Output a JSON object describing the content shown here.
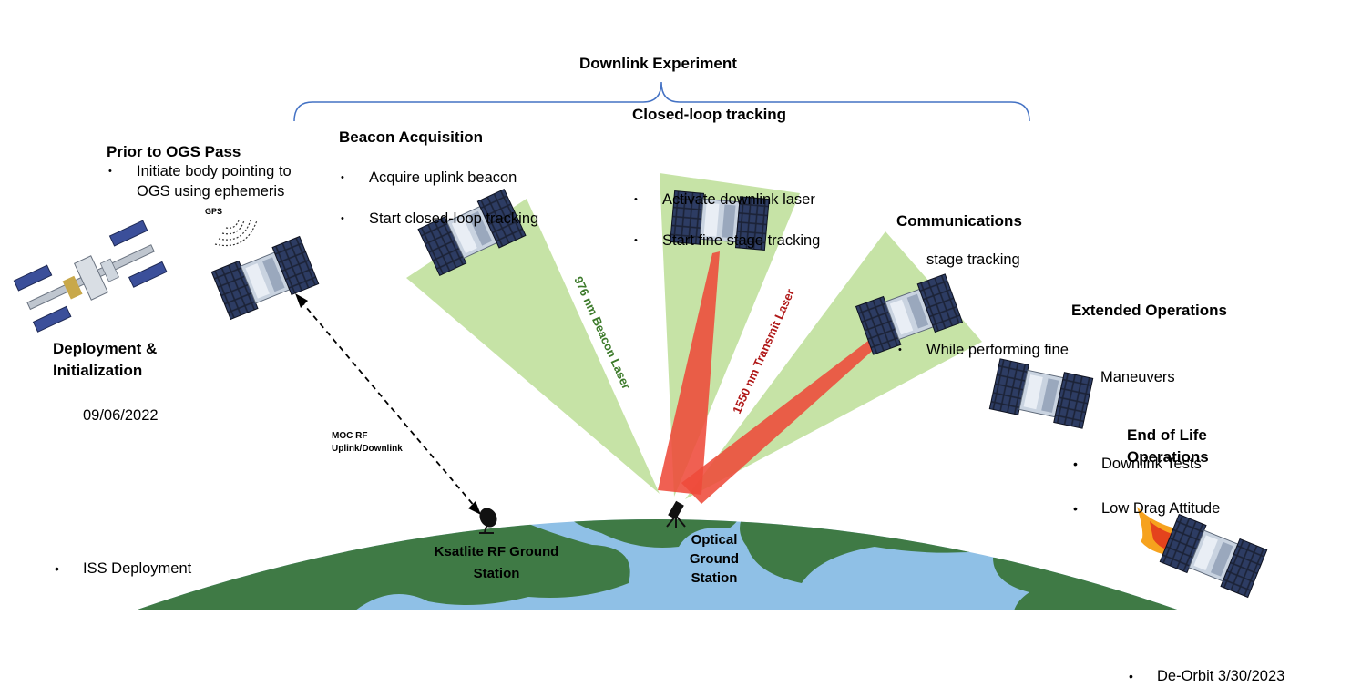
{
  "experiment": {
    "title": "Downlink Experiment"
  },
  "phases": {
    "deployment": {
      "title_line1": "Deployment &",
      "title_line2": "Initialization",
      "bullet_line1": "ISS Deployment",
      "bullet_line2": "09/06/2022"
    },
    "prior": {
      "title": "Prior to OGS Pass",
      "bullet_line1": "Initiate body pointing to",
      "bullet_line2": "OGS using ephemeris"
    },
    "beacon": {
      "title": "Beacon Acquisition",
      "bullets": [
        "Acquire uplink beacon",
        "Start closed-loop tracking"
      ]
    },
    "closed_loop": {
      "title": "Closed-loop tracking",
      "bullets": [
        "Activate downlink laser",
        "Start fine stage tracking"
      ]
    },
    "communications": {
      "title": "Communications",
      "bullet_line1": "While performing fine",
      "bullet_line2": "stage tracking"
    },
    "extended": {
      "title": "Extended Operations",
      "bullets": [
        "Downlink Tests",
        "Low Drag Attitude"
      ],
      "bullet_cont": "Maneuvers"
    },
    "eol": {
      "title_line1": "End of Life",
      "title_line2": "Operations",
      "bullet": "De-Orbit 3/30/2023"
    }
  },
  "labels": {
    "gps": "GPS",
    "beacon_laser": "976 nm Beacon Laser",
    "transmit_laser": "1550 nm Transmit Laser",
    "moc_line1": "MOC RF",
    "moc_line2": "Uplink/Downlink",
    "ksat_line1": "Ksatlite RF Ground",
    "ksat_line2": "Station",
    "ogs_line1": "Optical",
    "ogs_line2": "Ground",
    "ogs_line3": "Station"
  },
  "colors": {
    "ocean": "#8fc0e6",
    "land": "#3f7a45",
    "beam_green": "#c6e3a6",
    "beam_red": "#ee4a3a",
    "beacon_text": "#3c7a2a",
    "transmit_text": "#b01818",
    "brace": "#4472c4"
  }
}
